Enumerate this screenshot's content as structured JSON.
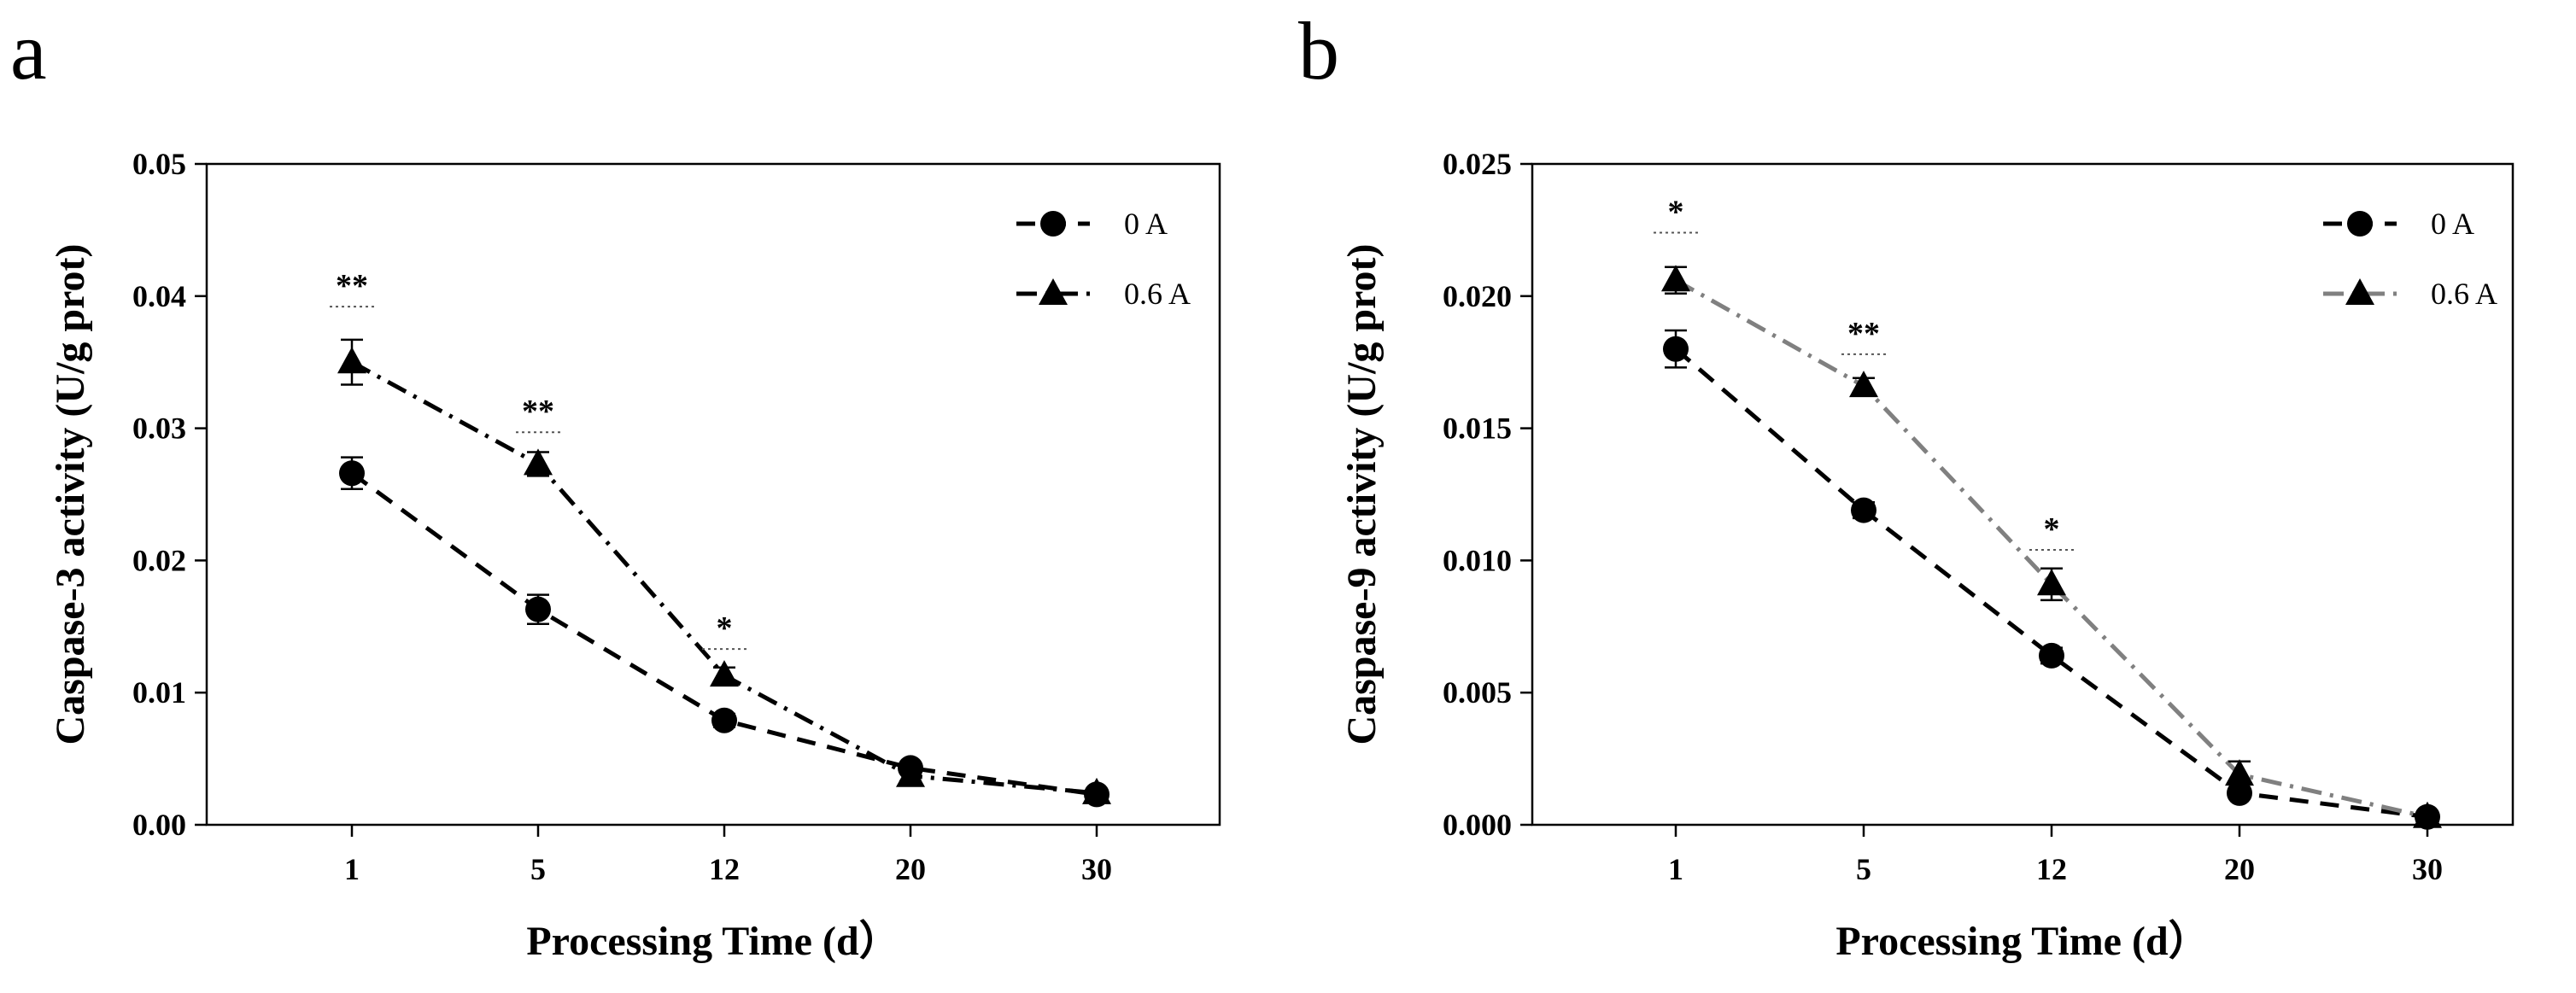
{
  "chart_data": [
    {
      "type": "line",
      "panel_label": "a",
      "xlabel": "Processing Time (d）",
      "ylabel": "Caspase-3 activity (U/g prot)",
      "categories": [
        "1",
        "5",
        "12",
        "20",
        "30"
      ],
      "ylim": [
        0,
        0.05
      ],
      "yticks": [
        "0.00",
        "0.01",
        "0.02",
        "0.03",
        "0.04",
        "0.05"
      ],
      "grid": false,
      "legend_position": "top-right",
      "series": [
        {
          "name": "0 A",
          "marker": "circle",
          "line_style": "dashed",
          "color": "#000000",
          "values": [
            0.0266,
            0.0163,
            0.0079,
            0.0043,
            0.0023
          ],
          "errors": [
            0.0012,
            0.0011,
            0.0005,
            0.0004,
            0.0003
          ]
        },
        {
          "name": "0.6 A",
          "marker": "triangle",
          "line_style": "dashdot",
          "color": "#000000",
          "values": [
            0.035,
            0.0273,
            0.0113,
            0.0037,
            0.0024
          ],
          "errors": [
            0.0017,
            0.0009,
            0.0006,
            0.0004,
            0.0003
          ]
        }
      ],
      "annotations": [
        {
          "category": "1",
          "text": "**",
          "value": 0.0392
        },
        {
          "category": "5",
          "text": "**",
          "value": 0.0297
        },
        {
          "category": "12",
          "text": "*",
          "value": 0.0133
        }
      ]
    },
    {
      "type": "line",
      "panel_label": "b",
      "xlabel": "Processing Time (d）",
      "ylabel": "Caspase-9 activity (U/g prot)",
      "categories": [
        "1",
        "5",
        "12",
        "20",
        "30"
      ],
      "ylim": [
        0,
        0.025
      ],
      "yticks": [
        "0.000",
        "0.005",
        "0.010",
        "0.015",
        "0.020",
        "0.025"
      ],
      "grid": false,
      "legend_position": "top-right",
      "series": [
        {
          "name": "0 A",
          "marker": "circle",
          "line_style": "dashed",
          "color": "#000000",
          "values": [
            0.018,
            0.0119,
            0.0064,
            0.0012,
            0.0003
          ],
          "errors": [
            0.0007,
            0.0003,
            0.0003,
            0.0002,
            0.0001
          ]
        },
        {
          "name": "0.6 A",
          "marker": "triangle",
          "line_style": "dashdot",
          "color": "#808080",
          "values": [
            0.0206,
            0.0166,
            0.0091,
            0.0019,
            0.0003
          ],
          "errors": [
            0.0005,
            0.0003,
            0.0006,
            0.0005,
            0.0001
          ]
        }
      ],
      "annotations": [
        {
          "category": "1",
          "text": "*",
          "value": 0.0224
        },
        {
          "category": "5",
          "text": "**",
          "value": 0.0178
        },
        {
          "category": "12",
          "text": "*",
          "value": 0.0104
        }
      ]
    }
  ]
}
